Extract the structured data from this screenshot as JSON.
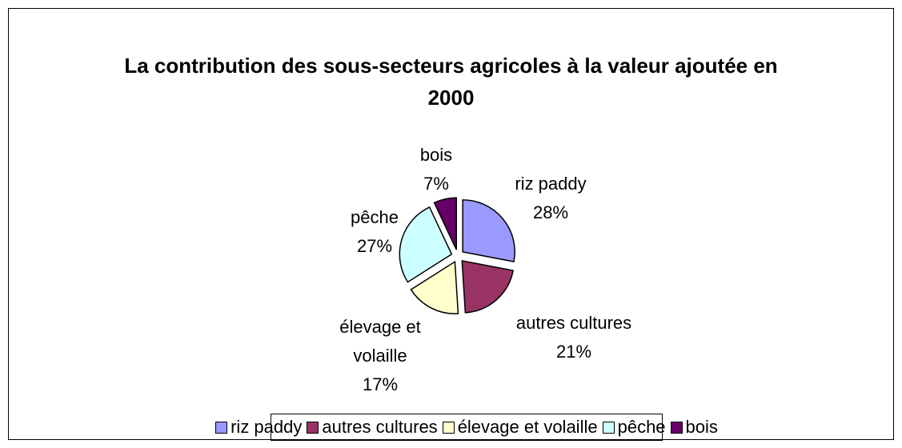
{
  "chart_data": {
    "type": "pie",
    "title": "La contribution des sous-secteurs agricoles à la valeur ajoutée en 2000",
    "categories": [
      "riz paddy",
      "autres cultures",
      "élevage et volaille",
      "pêche",
      "bois"
    ],
    "values": [
      28,
      21,
      17,
      27,
      7
    ],
    "value_labels": [
      "28%",
      "21%",
      "17%",
      "27%",
      "7%"
    ],
    "colors": [
      "#9999ff",
      "#993366",
      "#ffffcc",
      "#ccffff",
      "#660066"
    ],
    "legend": "bottom"
  }
}
